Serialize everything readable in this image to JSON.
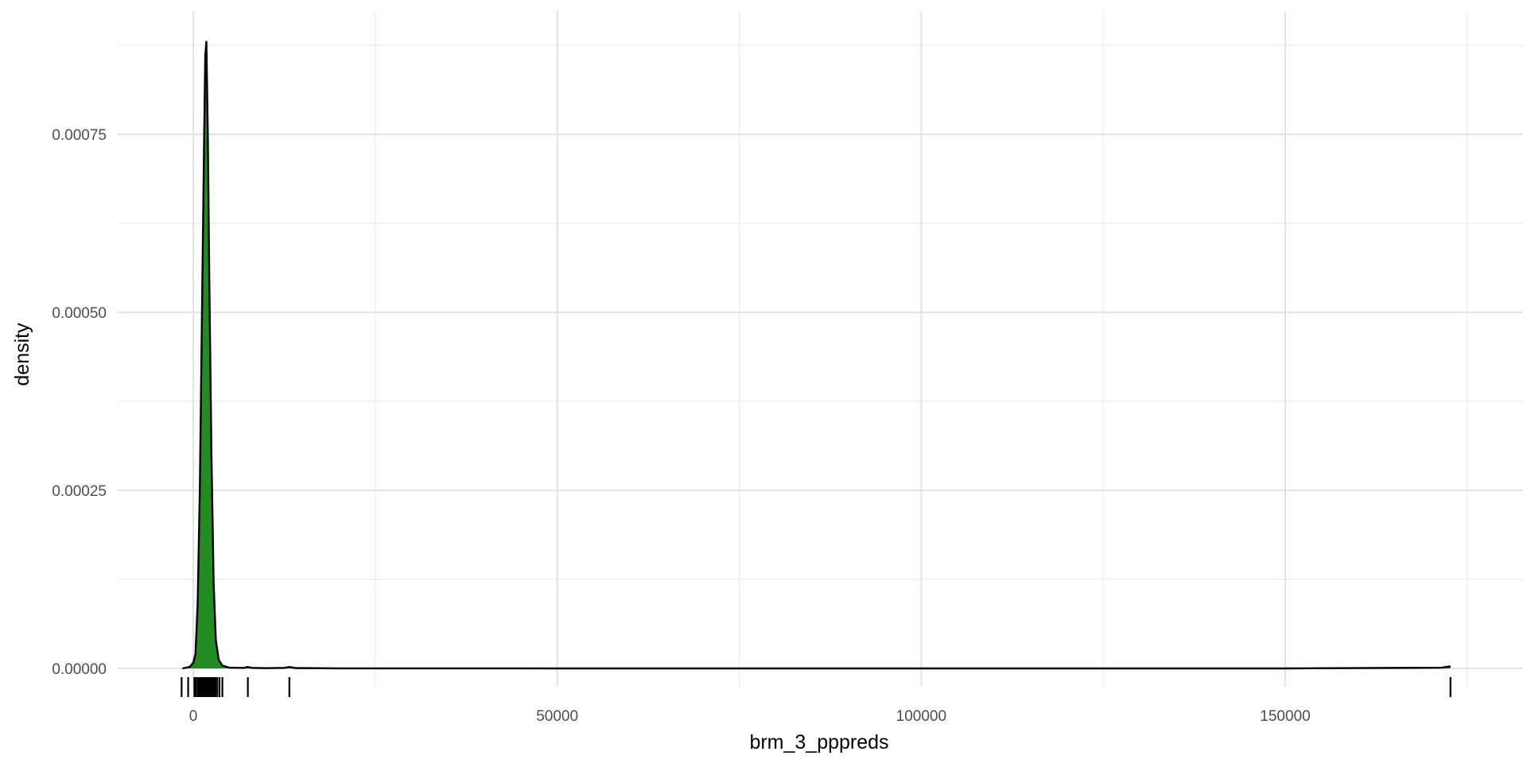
{
  "chart_data": {
    "type": "area",
    "title": "",
    "xlabel": "brm_3_pppreds",
    "ylabel": "density",
    "xlim": [
      -10000,
      175000
    ],
    "ylim": [
      -3e-05,
      0.00088
    ],
    "x_ticks": [
      0,
      50000,
      100000,
      150000
    ],
    "x_tick_labels": [
      "0",
      "50000",
      "100000",
      "150000"
    ],
    "y_ticks": [
      0,
      0.00025,
      0.0005,
      0.00075
    ],
    "y_tick_labels": [
      "0.00000",
      "0.00025",
      "0.00050",
      "0.00075"
    ],
    "grid": true,
    "legend": "none",
    "fill_color": "#228B22",
    "line_color": "#000000",
    "density_curve": {
      "x": [
        -1500,
        -500,
        0,
        300,
        600,
        900,
        1200,
        1500,
        1650,
        1800,
        2000,
        2200,
        2500,
        2800,
        3100,
        3500,
        4000,
        5000,
        7000,
        7500,
        8000,
        10000,
        12500,
        13200,
        14000,
        20000,
        50000,
        100000,
        150000,
        171500,
        172700
      ],
      "y": [
        0.0,
        2e-06,
        8e-06,
        2e-05,
        9e-05,
        0.00025,
        0.0005,
        0.00075,
        0.00086,
        0.00088,
        0.00075,
        0.00055,
        0.0003,
        0.00012,
        4e-05,
        1.2e-05,
        4e-06,
        1e-06,
        8e-07,
        2e-06,
        8e-07,
        3e-07,
        8e-07,
        2e-06,
        5e-07,
        1e-07,
        0.0,
        0.0,
        0.0,
        1e-06,
        3e-06
      ]
    },
    "rug_x": [
      -1600,
      -700,
      150,
      350,
      600,
      800,
      1000,
      1150,
      1300,
      1450,
      1600,
      1750,
      1900,
      2050,
      2200,
      2350,
      2500,
      2650,
      2850,
      3050,
      3300,
      3600,
      4000,
      7500,
      13200,
      172700
    ]
  }
}
